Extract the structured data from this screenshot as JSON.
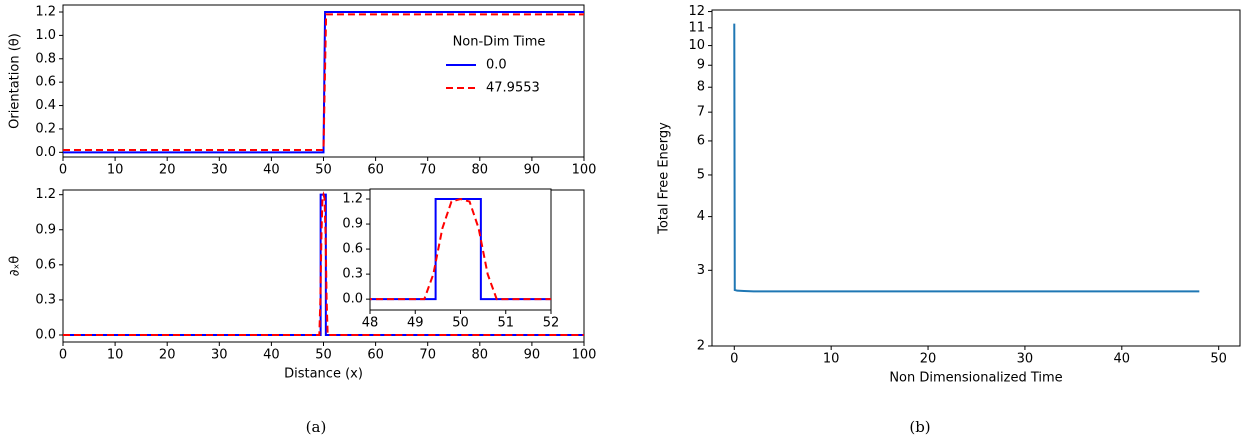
{
  "chart_data": [
    {
      "type": "line",
      "ylabel": "Orientation (θ)",
      "xlim": [
        0,
        100
      ],
      "xticks": [
        0,
        10,
        20,
        30,
        40,
        50,
        60,
        70,
        80,
        90,
        100
      ],
      "ylim": [
        -0.04,
        1.26
      ],
      "yticks": [
        {
          "value": 0,
          "label": "0.0"
        },
        {
          "value": 0.2,
          "label": "0.2"
        },
        {
          "value": 0.4,
          "label": "0.4"
        },
        {
          "value": 0.6,
          "label": "0.6"
        },
        {
          "value": 0.8,
          "label": "0.8"
        },
        {
          "value": 1,
          "label": "1.0"
        },
        {
          "value": 1.2,
          "label": "1.2"
        }
      ],
      "legend_title": "Non-Dim Time",
      "legend": "upper right",
      "series": [
        {
          "name": "0.0",
          "color": "#0000ff",
          "dash": false,
          "x": [
            0,
            50,
            50.3,
            100
          ],
          "values": [
            0,
            0,
            1.2,
            1.2
          ]
        },
        {
          "name": "47.9553",
          "color": "#ff0000",
          "dash": true,
          "x": [
            0,
            50,
            50.5,
            100
          ],
          "values": [
            0.02,
            0.02,
            1.18,
            1.18
          ]
        }
      ]
    },
    {
      "type": "line",
      "ylabel": "∂ₓθ",
      "xlabel": "Distance (x)",
      "xlim": [
        0,
        100
      ],
      "xticks": [
        0,
        10,
        20,
        30,
        40,
        50,
        60,
        70,
        80,
        90,
        100
      ],
      "ylim": [
        -0.06,
        1.24
      ],
      "yticks": [
        {
          "value": 0,
          "label": "0.0"
        },
        {
          "value": 0.3,
          "label": "0.3"
        },
        {
          "value": 0.6,
          "label": "0.6"
        },
        {
          "value": 0.9,
          "label": "0.9"
        },
        {
          "value": 1.2,
          "label": "1.2"
        }
      ],
      "series": [
        {
          "color": "#0000ff",
          "dash": false,
          "x": [
            0,
            49.45,
            49.45,
            50.45,
            50.45,
            100
          ],
          "values": [
            0,
            0,
            1.2,
            1.2,
            0,
            0
          ]
        },
        {
          "color": "#ff0000",
          "dash": true,
          "x": [
            0,
            49.2,
            49.4,
            49.6,
            49.8,
            50,
            50.2,
            50.4,
            50.6,
            50.8,
            100
          ],
          "values": [
            0,
            0,
            0.3,
            0.85,
            1.17,
            1.2,
            1.17,
            0.85,
            0.3,
            0,
            0
          ]
        }
      ],
      "inset": {
        "xlim": [
          48,
          52
        ],
        "xticks": [
          48,
          49,
          50,
          51,
          52
        ],
        "ylim": [
          -0.13,
          1.32
        ],
        "yticks": [
          {
            "value": 0,
            "label": "0.0"
          },
          {
            "value": 0.3,
            "label": "0.3"
          },
          {
            "value": 0.6,
            "label": "0.6"
          },
          {
            "value": 0.9,
            "label": "0.9"
          },
          {
            "value": 1.2,
            "label": "1.2"
          }
        ]
      }
    },
    {
      "type": "line",
      "ylabel": "Total Free Energy",
      "xlabel": "Non Dimensionalized Time",
      "log_y": true,
      "xlim": [
        -2.3,
        52.2
      ],
      "xticks": [
        0,
        10,
        20,
        30,
        40,
        50
      ],
      "ylim": [
        2,
        12.1
      ],
      "yticks": [
        2,
        3,
        4,
        5,
        6,
        7,
        8,
        9,
        10,
        11,
        12
      ],
      "series": [
        {
          "color": "#1f77b4",
          "dash": false,
          "x": [
            0,
            0.05,
            0.3,
            1,
            2,
            5,
            48
          ],
          "values": [
            11.25,
            2.7,
            2.69,
            2.685,
            2.68,
            2.68,
            2.68
          ]
        }
      ]
    }
  ],
  "captions": [
    "(a)",
    "(b)"
  ]
}
